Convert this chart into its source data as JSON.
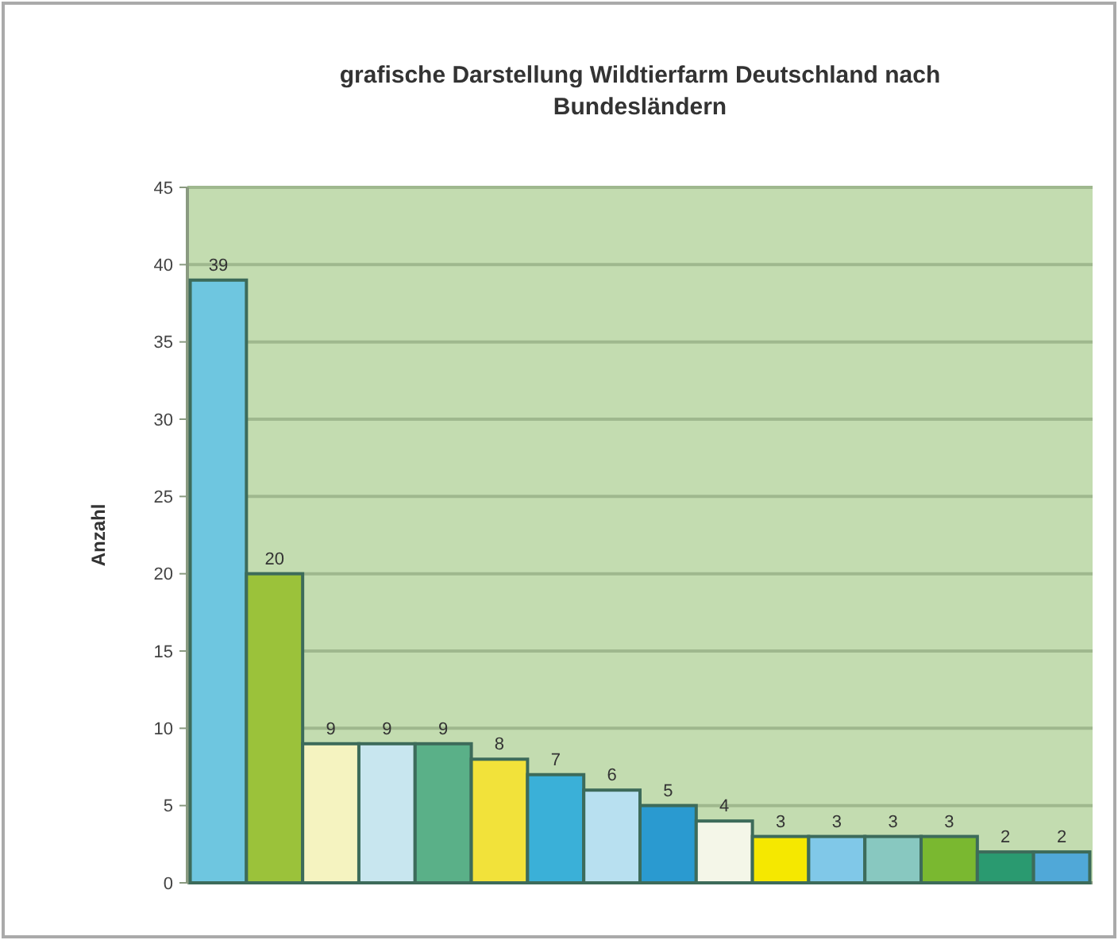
{
  "chart_data": {
    "type": "bar",
    "title": "grafische Darstellung Wildtierfarm Deutschland nach Bundesländern",
    "ylabel": "Anzahl",
    "categories": [
      null,
      null,
      null,
      null,
      null,
      null,
      null,
      null,
      null,
      null,
      null,
      null,
      null,
      null,
      null,
      null
    ],
    "values": [
      39,
      20,
      9,
      9,
      9,
      8,
      7,
      6,
      5,
      4,
      3,
      3,
      3,
      3,
      2,
      2
    ],
    "colors": [
      "#6ec6e0",
      "#9bc23a",
      "#f5f3c0",
      "#c8e6ef",
      "#5ab088",
      "#f2e23a",
      "#3ab0d8",
      "#b8e0f0",
      "#2a9ad0",
      "#f4f6e8",
      "#f5e800",
      "#80c8e8",
      "#88c8c0",
      "#7ab830",
      "#2a9a70",
      "#50a8d8"
    ],
    "ylim": [
      0,
      45
    ],
    "yticks": [
      0,
      5,
      10,
      15,
      20,
      25,
      30,
      35,
      40,
      45
    ],
    "grid": "y",
    "data_labels": true
  }
}
